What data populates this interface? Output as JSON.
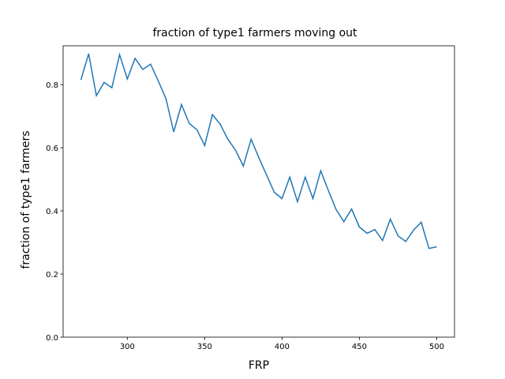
{
  "chart_data": {
    "type": "line",
    "title": "fraction of type1 farmers moving out",
    "x_label": "FRP",
    "y_label": "fraction of type1 farmers",
    "x": [
      270,
      275,
      280,
      285,
      290,
      295,
      300,
      305,
      310,
      315,
      320,
      325,
      330,
      335,
      340,
      345,
      350,
      355,
      360,
      365,
      370,
      375,
      380,
      385,
      390,
      395,
      400,
      405,
      410,
      415,
      420,
      425,
      430,
      435,
      440,
      445,
      450,
      455,
      460,
      465,
      470,
      475,
      480,
      485,
      490,
      495,
      500
    ],
    "series": [
      {
        "name": "fraction",
        "color": "#1f77b4",
        "values": [
          0.815,
          0.898,
          0.765,
          0.807,
          0.79,
          0.895,
          0.818,
          0.883,
          0.848,
          0.865,
          0.812,
          0.755,
          0.65,
          0.737,
          0.677,
          0.657,
          0.607,
          0.705,
          0.675,
          0.627,
          0.592,
          0.542,
          0.627,
          0.569,
          0.514,
          0.459,
          0.439,
          0.507,
          0.429,
          0.507,
          0.439,
          0.527,
          0.464,
          0.404,
          0.366,
          0.406,
          0.349,
          0.329,
          0.341,
          0.306,
          0.374,
          0.321,
          0.303,
          0.339,
          0.364,
          0.281,
          0.286
        ]
      }
    ],
    "xlim": [
      258.5,
      511.5
    ],
    "xticks": [
      300,
      350,
      400,
      450,
      500
    ],
    "ylim": [
      0,
      0.923
    ],
    "yticks": [
      {
        "value": 0,
        "label": "0.0"
      },
      {
        "value": 0.2,
        "label": "0.2"
      },
      {
        "value": 0.4,
        "label": "0.4"
      },
      {
        "value": 0.6,
        "label": "0.6"
      },
      {
        "value": 0.8,
        "label": "0.8"
      }
    ]
  }
}
